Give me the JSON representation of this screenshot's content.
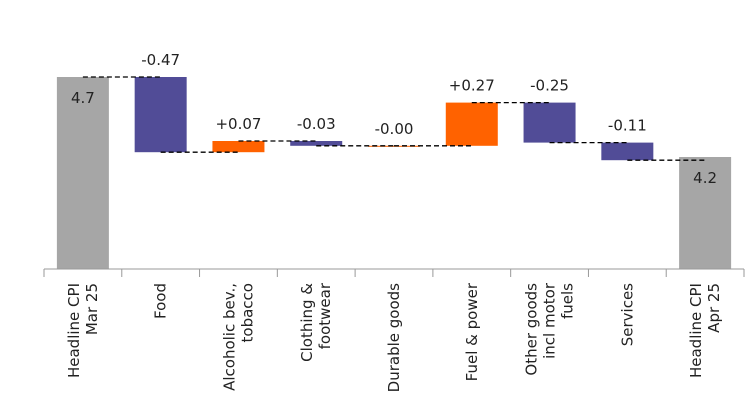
{
  "chart_data": {
    "type": "waterfall",
    "categories": [
      [
        "Headline CPI",
        "Mar 25"
      ],
      [
        "Food"
      ],
      [
        "Alcoholic bev.,",
        "tobacco"
      ],
      [
        "Clothing &",
        "footwear"
      ],
      [
        "Durable goods"
      ],
      [
        "Fuel & power"
      ],
      [
        "Other goods",
        "incl motor",
        "fuels"
      ],
      [
        "Services"
      ],
      [
        "Headline CPI",
        "Apr 25"
      ]
    ],
    "values": [
      4.7,
      -0.47,
      0.07,
      -0.03,
      0,
      0.27,
      -0.25,
      -0.11,
      4.2
    ],
    "value_labels": [
      "4.7",
      "-0.47",
      "+0.07",
      "-0.03",
      "-0.00",
      "+0.27",
      "-0.25",
      "-0.11",
      "4.2"
    ],
    "is_total": [
      true,
      false,
      false,
      false,
      false,
      false,
      false,
      false,
      true
    ],
    "colors": {
      "total": "#a6a6a6",
      "increase": "#ff6200",
      "decrease": "#514c97"
    },
    "ylim": [
      3.5,
      5.0
    ]
  }
}
